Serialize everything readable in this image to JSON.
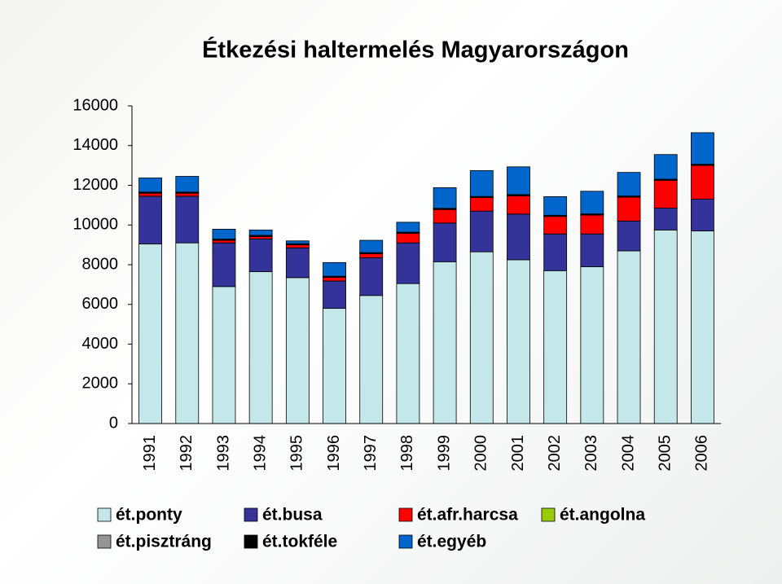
{
  "chart_data": {
    "type": "stacked_bar",
    "title": "Étkezési haltermelés Magyarországon",
    "categories": [
      "1991",
      "1992",
      "1993",
      "1994",
      "1995",
      "1996",
      "1997",
      "1998",
      "1999",
      "2000",
      "2001",
      "2002",
      "2003",
      "2004",
      "2005",
      "2006"
    ],
    "series": [
      {
        "name": "ét.ponty",
        "color": "#c4e8ea",
        "values": [
          9050,
          9100,
          6900,
          7650,
          7350,
          5800,
          6450,
          7050,
          8150,
          8650,
          8250,
          7700,
          7900,
          8700,
          9750,
          9700
        ]
      },
      {
        "name": "ét.busa",
        "color": "#333399",
        "values": [
          2400,
          2350,
          2200,
          1650,
          1500,
          1380,
          1900,
          2050,
          1950,
          2050,
          2300,
          1850,
          1650,
          1500,
          1100,
          1600
        ]
      },
      {
        "name": "ét.afr.harcsa",
        "color": "#ff0000",
        "values": [
          150,
          150,
          130,
          120,
          150,
          180,
          200,
          480,
          680,
          680,
          920,
          880,
          950,
          1200,
          1400,
          1700
        ]
      },
      {
        "name": "ét.angolna",
        "color": "#99cc00",
        "values": [
          10,
          10,
          10,
          10,
          10,
          10,
          10,
          10,
          10,
          10,
          10,
          10,
          10,
          10,
          10,
          10
        ]
      },
      {
        "name": "ét.pisztráng",
        "color": "#969696",
        "values": [
          20,
          20,
          20,
          20,
          20,
          20,
          20,
          20,
          20,
          20,
          20,
          20,
          20,
          20,
          20,
          20
        ]
      },
      {
        "name": "ét.tokféle",
        "color": "#000000",
        "values": [
          30,
          30,
          30,
          30,
          30,
          30,
          30,
          30,
          30,
          30,
          30,
          30,
          30,
          30,
          30,
          30
        ]
      },
      {
        "name": "ét.egyéb",
        "color": "#0066cc",
        "values": [
          710,
          790,
          500,
          270,
          140,
          690,
          620,
          500,
          1040,
          1300,
          1400,
          940,
          1140,
          1190,
          1240,
          1590
        ]
      }
    ],
    "ylim": [
      0,
      16000
    ],
    "yticks": [
      0,
      2000,
      4000,
      6000,
      8000,
      10000,
      12000,
      14000,
      16000
    ],
    "grid": false
  }
}
